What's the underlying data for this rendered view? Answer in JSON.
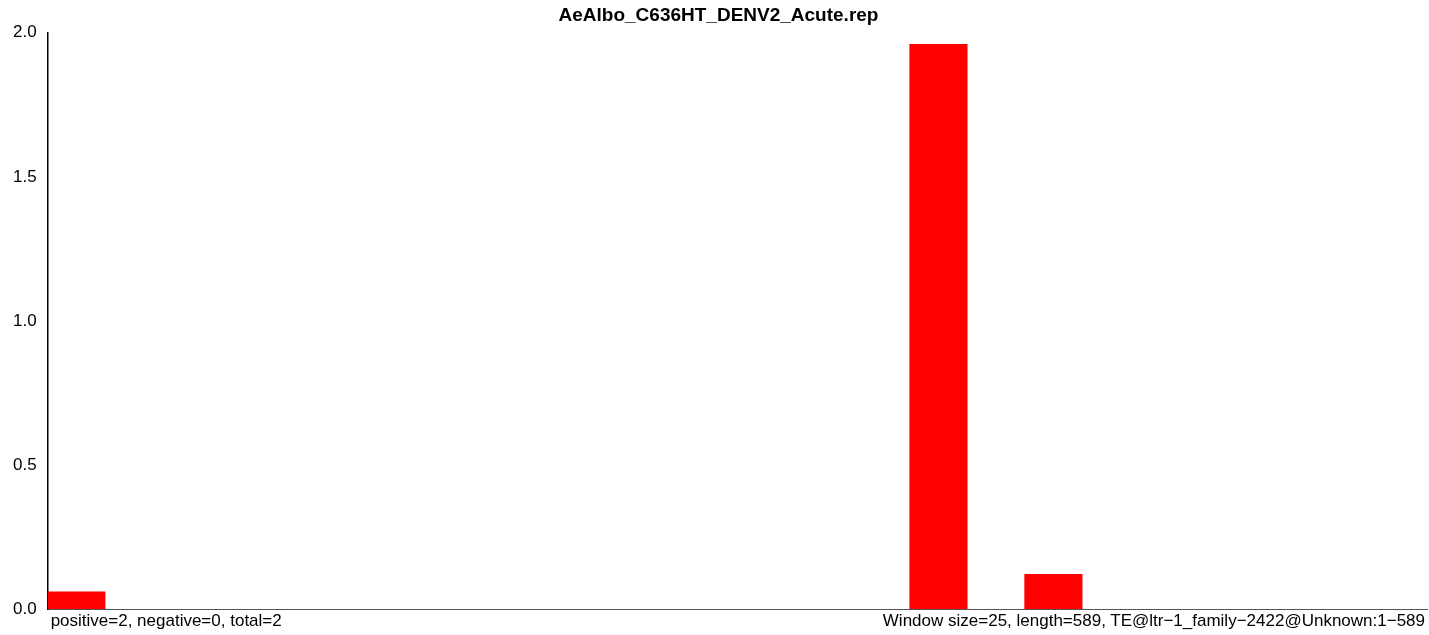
{
  "chart_data": {
    "type": "bar",
    "title": "AeAlbo_C636HT_DENV2_Acute.rep",
    "categories": [
      null,
      null,
      null,
      null,
      null,
      null,
      null,
      null,
      null,
      null,
      null,
      null,
      null,
      null,
      null,
      null,
      null,
      null,
      null,
      null,
      null,
      null,
      null,
      null
    ],
    "values": [
      0.06,
      null,
      null,
      null,
      null,
      null,
      null,
      null,
      null,
      null,
      null,
      null,
      null,
      null,
      null,
      1.96,
      null,
      0.12,
      null,
      null,
      null,
      null,
      null,
      null
    ],
    "color": "#ff0000",
    "ylim": [
      0,
      2
    ],
    "yticks": [
      {
        "value": 0,
        "label": "0.0"
      },
      {
        "value": 0.5,
        "label": "0.5"
      },
      {
        "value": 1,
        "label": "1.0"
      },
      {
        "value": 1.5,
        "label": "1.5"
      },
      {
        "value": 2,
        "label": "2.0"
      }
    ],
    "tick_labels": "y",
    "grid": false,
    "legend": false,
    "annotations": [
      "positive=2, negative=0, total=2",
      "Window size=25, length=589, TE@ltr−1_family−2422@Unknown:1−589"
    ]
  }
}
